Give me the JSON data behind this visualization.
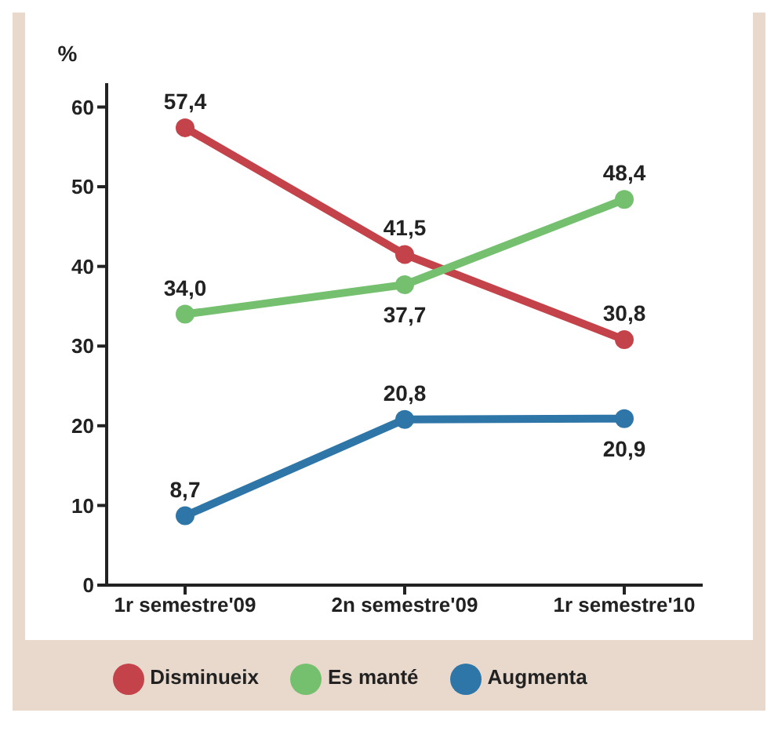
{
  "chart_data": {
    "type": "line",
    "ylabel": "%",
    "categories": [
      "1r semestre'09",
      "2n semestre'09",
      "1r semestre'10"
    ],
    "series": [
      {
        "name": "Disminueix",
        "color": "#c4434a",
        "values": [
          57.4,
          41.5,
          30.8
        ],
        "value_labels": [
          "57,4",
          "41,5",
          "30,8"
        ]
      },
      {
        "name": "Es manté",
        "color": "#74c06f",
        "values": [
          34.0,
          37.7,
          48.4
        ],
        "value_labels": [
          "34,0",
          "37,7",
          "48,4"
        ]
      },
      {
        "name": "Augmenta",
        "color": "#2e75a8",
        "values": [
          8.7,
          20.8,
          20.9
        ],
        "value_labels": [
          "8,7",
          "20,8",
          "20,9"
        ]
      }
    ],
    "ylim": [
      0,
      63
    ],
    "yticks": [
      0,
      10,
      20,
      30,
      40,
      50,
      60
    ],
    "legend": "bottom",
    "marker": "circle",
    "line_style": "solid"
  }
}
